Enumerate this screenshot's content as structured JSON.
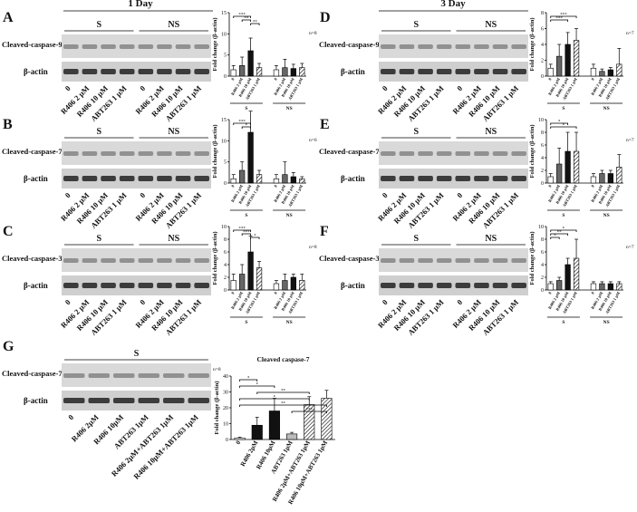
{
  "headers": [
    "1 Day",
    "3 Day"
  ],
  "chart_data": [
    {
      "type": "bar",
      "panel": "A",
      "blot_label": "Cleaved-caspase-9",
      "loading_label": "β-actin",
      "groups": [
        "S",
        "NS"
      ],
      "n_label": "n=8",
      "y_label": "Fold change (β-actin)",
      "lane_labels": [
        "0",
        "R406 2 μM",
        "R406 10 μM",
        "ABT263 1 μM",
        "0",
        "R406 2 μM",
        "R406 10 μM",
        "ABT263 1 μM"
      ],
      "categories": [
        "0",
        "R406 2 μM",
        "R406 10 μM",
        "ABT263 1 μM",
        "0",
        "R406 2 μM",
        "R406 10 μM",
        "ABT263 1 μM"
      ],
      "values": [
        1.5,
        2.5,
        6,
        2,
        1.5,
        2,
        1.8,
        2
      ],
      "errors": [
        1,
        2,
        3,
        1,
        1,
        2,
        1,
        1
      ],
      "colors": [
        "#ffffff",
        "#666666",
        "#111111",
        "#ffffff",
        "#ffffff",
        "#666666",
        "#111111",
        "#ffffff"
      ],
      "hatch": [
        false,
        false,
        false,
        true,
        false,
        false,
        false,
        true
      ],
      "ylim": [
        0,
        15
      ],
      "yticks": [
        0,
        5,
        10,
        15
      ],
      "significance": [
        {
          "label": "***",
          "between": [
            "0",
            "R406 10 μM"
          ]
        },
        {
          "label": "**",
          "between": [
            "R406 2 μM",
            "R406 10 μM"
          ]
        },
        {
          "label": "**",
          "between": [
            "R406 10 μM",
            "ABT263 1 μM"
          ]
        }
      ]
    },
    {
      "type": "bar",
      "panel": "B",
      "blot_label": "Cleaved-caspase-7",
      "loading_label": "β-actin",
      "groups": [
        "S",
        "NS"
      ],
      "n_label": "n=6",
      "y_label": "Fold change (β-actin)",
      "lane_labels": [
        "0",
        "R406 2 μM",
        "R406 10 μM",
        "ABT263 1 μM",
        "0",
        "R406 2 μM",
        "R406 10 μM",
        "ABT263 1 μM"
      ],
      "categories": [
        "0",
        "R406 2 μM",
        "R406 10 μM",
        "ABT263 1 μM",
        "0",
        "R406 2 μM",
        "R406 10 μM",
        "ABT263 1 μM"
      ],
      "values": [
        1,
        3,
        12,
        2,
        1,
        2,
        1.5,
        1
      ],
      "errors": [
        1,
        2,
        5,
        1,
        1,
        3,
        1,
        0.5
      ],
      "colors": [
        "#ffffff",
        "#666666",
        "#111111",
        "#ffffff",
        "#ffffff",
        "#666666",
        "#111111",
        "#ffffff"
      ],
      "hatch": [
        false,
        false,
        false,
        true,
        false,
        false,
        false,
        true
      ],
      "ylim": [
        0,
        15
      ],
      "yticks": [
        0,
        5,
        10,
        15
      ],
      "significance": [
        {
          "label": "***",
          "between": [
            "0",
            "R406 10 μM"
          ]
        },
        {
          "label": "*",
          "between": [
            "R406 2 μM",
            "R406 10 μM"
          ]
        }
      ]
    },
    {
      "type": "bar",
      "panel": "C",
      "blot_label": "Cleaved-caspase-3",
      "loading_label": "β-actin",
      "groups": [
        "S",
        "NS"
      ],
      "n_label": "n=8",
      "y_label": "Fold change (β-actin)",
      "lane_labels": [
        "0",
        "R406 2 μM",
        "R406 10 μM",
        "ABT263 1 μM",
        "0",
        "R406 2 μM",
        "R406 10 μM",
        "ABT263 1 μM"
      ],
      "categories": [
        "0",
        "R406 2 μM",
        "R406 10 μM",
        "ABT263 1 μM",
        "0",
        "R406 2 μM",
        "R406 10 μM",
        "ABT263 1 μM"
      ],
      "values": [
        1.5,
        2.5,
        6,
        3.5,
        1,
        1.5,
        2,
        1.5
      ],
      "errors": [
        1,
        1.5,
        2.5,
        1,
        0.5,
        1,
        0.5,
        1
      ],
      "colors": [
        "#ffffff",
        "#666666",
        "#111111",
        "#ffffff",
        "#ffffff",
        "#666666",
        "#111111",
        "#ffffff"
      ],
      "hatch": [
        false,
        false,
        false,
        true,
        false,
        false,
        false,
        true
      ],
      "ylim": [
        0,
        10
      ],
      "yticks": [
        0,
        2,
        4,
        6,
        8,
        10
      ],
      "significance": [
        {
          "label": "***",
          "between": [
            "0",
            "R406 10 μM"
          ]
        },
        {
          "label": "***",
          "between": [
            "R406 2 μM",
            "R406 10 μM"
          ]
        },
        {
          "label": "*",
          "between": [
            "R406 10 μM",
            "ABT263 1 μM"
          ]
        }
      ]
    },
    {
      "type": "bar",
      "panel": "D",
      "blot_label": "Cleaved-caspase-9",
      "loading_label": "β-actin",
      "groups": [
        "S",
        "NS"
      ],
      "n_label": "n=7",
      "y_label": "Fold change (β-actin)",
      "lane_labels": [
        "0",
        "R406 2 μM",
        "R406 10 μM",
        "ABT263 1 μM",
        "0",
        "R406 2 μM",
        "R406 10 μM",
        "ABT263 1 μM"
      ],
      "categories": [
        "0",
        "R406 2 μM",
        "R406 10 μM",
        "ABT263 1 μM",
        "0",
        "R406 2 μM",
        "R406 10 μM",
        "ABT263 1 μM"
      ],
      "values": [
        1,
        2.5,
        4,
        4.5,
        1,
        0.6,
        0.8,
        1.5
      ],
      "errors": [
        0.5,
        1.5,
        1.5,
        1.5,
        0.5,
        0.3,
        0.3,
        2
      ],
      "colors": [
        "#ffffff",
        "#666666",
        "#111111",
        "#ffffff",
        "#ffffff",
        "#666666",
        "#111111",
        "#ffffff"
      ],
      "hatch": [
        false,
        false,
        false,
        true,
        false,
        false,
        false,
        true
      ],
      "ylim": [
        0,
        8
      ],
      "yticks": [
        0,
        2,
        4,
        6,
        8
      ],
      "significance": [
        {
          "label": "***",
          "between": [
            "0",
            "ABT263 1 μM"
          ]
        },
        {
          "label": "***",
          "between": [
            "0",
            "R406 10 μM"
          ]
        }
      ]
    },
    {
      "type": "bar",
      "panel": "E",
      "blot_label": "Cleaved-caspase-7",
      "loading_label": "β-actin",
      "groups": [
        "S",
        "NS"
      ],
      "n_label": "n=7",
      "y_label": "Fold change (β-actin)",
      "lane_labels": [
        "0",
        "R406 2 μM",
        "R406 10 μM",
        "ABT263 1 μM",
        "0",
        "R406 2 μM",
        "R406 10 μM",
        "ABT263 1 μM"
      ],
      "categories": [
        "0",
        "R406 2 μM",
        "R406 10 μM",
        "ABT263 1 μM",
        "0",
        "R406 2 μM",
        "R406 10 μM",
        "ABT263 1 μM"
      ],
      "values": [
        1,
        3,
        5,
        5,
        1,
        1.5,
        1.5,
        2.5
      ],
      "errors": [
        0.5,
        2.5,
        3,
        3,
        0.5,
        0.5,
        0.5,
        2
      ],
      "colors": [
        "#ffffff",
        "#666666",
        "#111111",
        "#ffffff",
        "#ffffff",
        "#666666",
        "#111111",
        "#ffffff"
      ],
      "hatch": [
        false,
        false,
        false,
        true,
        false,
        false,
        false,
        true
      ],
      "ylim": [
        0,
        10
      ],
      "yticks": [
        0,
        2,
        4,
        6,
        8,
        10
      ],
      "significance": [
        {
          "label": "*",
          "between": [
            "0",
            "R406 10 μM"
          ]
        },
        {
          "label": "*",
          "between": [
            "0",
            "ABT263 1 μM"
          ]
        }
      ]
    },
    {
      "type": "bar",
      "panel": "F",
      "blot_label": "Cleaved-caspase-3",
      "loading_label": "β-actin",
      "groups": [
        "S",
        "NS"
      ],
      "n_label": "n=7",
      "y_label": "Fold change (β-actin)",
      "lane_labels": [
        "0",
        "R406 2 μM",
        "R406 10 μM",
        "ABT263 1 μM",
        "0",
        "R406 2 μM",
        "R406 10 μM",
        "ABT263 1 μM"
      ],
      "categories": [
        "0",
        "R406 2 μM",
        "R406 10 μM",
        "ABT263 1 μM",
        "0",
        "R406 2 μM",
        "R406 10 μM",
        "ABT263 1 μM"
      ],
      "values": [
        1,
        1.5,
        4,
        5,
        1,
        1,
        1,
        1
      ],
      "errors": [
        0.3,
        0.5,
        1,
        3,
        0.3,
        0.3,
        0.3,
        0.3
      ],
      "colors": [
        "#ffffff",
        "#666666",
        "#111111",
        "#ffffff",
        "#ffffff",
        "#666666",
        "#111111",
        "#ffffff"
      ],
      "hatch": [
        false,
        false,
        false,
        true,
        false,
        false,
        false,
        true
      ],
      "ylim": [
        0,
        10
      ],
      "yticks": [
        0,
        2,
        4,
        6,
        8,
        10
      ],
      "significance": [
        {
          "label": "*",
          "between": [
            "0",
            "ABT263 1 μM"
          ]
        },
        {
          "label": "**",
          "between": [
            "0",
            "R406 10 μM"
          ]
        },
        {
          "label": "*",
          "between": [
            "0",
            "R406 2 μM"
          ]
        }
      ]
    },
    {
      "type": "bar",
      "panel": "G",
      "title": "Cleaved caspase-7",
      "blot_label": "Cleaved-caspase-7",
      "loading_label": "β-actin",
      "groups": [
        "S"
      ],
      "n_label": "n=8",
      "y_label": "Fold change (β-actin)",
      "lane_labels": [
        "0",
        "R406 2μM",
        "R406 10μM",
        "ABT263 1μM",
        "R406 2μM+ABT263 1μM",
        "R406 10μM+ABT263 1μM"
      ],
      "categories": [
        "0",
        "R406 2μM",
        "R406 10μM",
        "ABT263 1μM",
        "R406 2μM+ABT263 1μM",
        "R406 10μM+ABT263 1μM"
      ],
      "values": [
        1,
        9,
        18,
        3.5,
        22,
        26
      ],
      "errors": [
        0.5,
        5,
        8,
        1,
        5,
        5
      ],
      "colors": [
        "#ffffff",
        "#111111",
        "#111111",
        "#bbbbbb",
        "#ffffff",
        "#ffffff"
      ],
      "hatch": [
        false,
        false,
        false,
        false,
        true,
        true
      ],
      "ylim": [
        0,
        40
      ],
      "yticks": [
        0,
        10,
        20,
        30,
        40
      ],
      "significance": [
        {
          "label": "*",
          "between": [
            "0",
            "R406 2μM"
          ]
        },
        {
          "label": "*",
          "between": [
            "0",
            "R406 10μM"
          ]
        },
        {
          "label": "**",
          "between": [
            "R406 2μM",
            "R406 2μM+ABT263 1μM"
          ]
        },
        {
          "label": "*",
          "between": [
            "0",
            "R406 2μM+ABT263 1μM"
          ]
        },
        {
          "label": "**",
          "between": [
            "0",
            "R406 10μM+ABT263 1μM"
          ]
        },
        {
          "label": "***",
          "between": [
            "ABT263 1μM",
            "R406 10μM+ABT263 1μM"
          ]
        }
      ]
    }
  ]
}
